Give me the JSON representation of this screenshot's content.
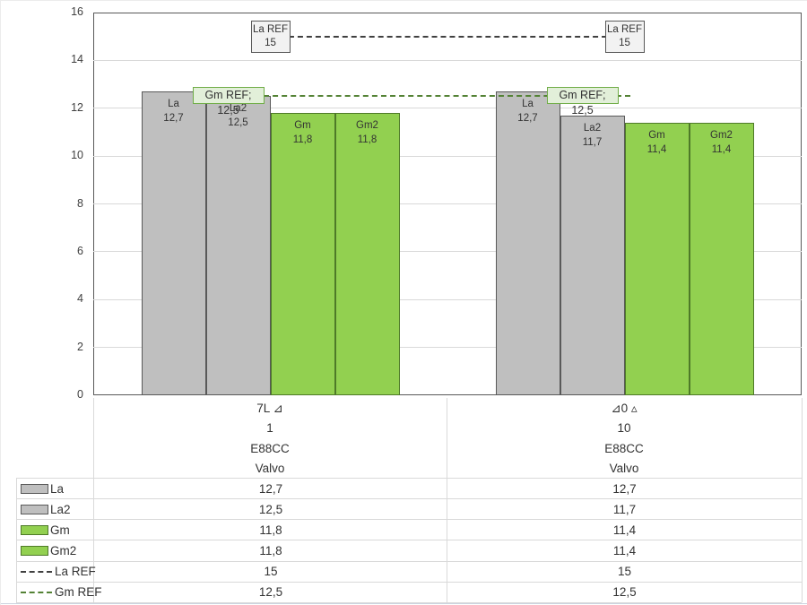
{
  "chart_data": {
    "type": "bar",
    "title": "",
    "ylim": [
      0,
      16
    ],
    "yticks": [
      0,
      2,
      4,
      6,
      8,
      10,
      12,
      14,
      16
    ],
    "grid": true,
    "decimal_separator": ",",
    "categories": [
      [
        "7L ⊿",
        "1",
        "E88CC",
        "Valvo"
      ],
      [
        "⊿0 ▵",
        "10",
        "E88CC",
        "Valvo"
      ]
    ],
    "series": [
      {
        "name": "La",
        "fill": "#bfbfbf",
        "border": "#595959",
        "values": [
          12.7,
          12.7
        ],
        "labels": [
          "12,7",
          "12,7"
        ]
      },
      {
        "name": "La2",
        "fill": "#bfbfbf",
        "border": "#595959",
        "values": [
          12.5,
          11.7
        ],
        "labels": [
          "12,5",
          "11,7"
        ]
      },
      {
        "name": "Gm",
        "fill": "#92d050",
        "border": "#4e7a28",
        "values": [
          11.8,
          11.4
        ],
        "labels": [
          "11,8",
          "11,4"
        ]
      },
      {
        "name": "Gm2",
        "fill": "#92d050",
        "border": "#4e7a28",
        "values": [
          11.8,
          11.4
        ],
        "labels": [
          "11,8",
          "11,4"
        ]
      }
    ],
    "ref_lines": [
      {
        "name": "La REF",
        "value": 15,
        "color": "#404040",
        "style": "dashed",
        "label_lines": [
          "La REF",
          "15"
        ],
        "label_bg": "#f2f2f2",
        "label_border": "#595959"
      },
      {
        "name": "Gm REF",
        "value": 12.5,
        "color": "#548235",
        "style": "dashed",
        "label": "Gm REF; 12,5",
        "label_bg": "#e2efd9",
        "label_border": "#70ad47"
      }
    ],
    "legend_position": "table-left"
  },
  "swatches": {
    "gray": {
      "fill": "#bfbfbf",
      "border": "#595959"
    },
    "green": {
      "fill": "#92d050",
      "border": "#4e7a28"
    },
    "dash-black": {
      "color": "#404040"
    },
    "dash-green": {
      "color": "#548235"
    }
  },
  "table": {
    "headers": [
      [
        "7L ⊿",
        "1",
        "E88CC",
        "Valvo"
      ],
      [
        "⊿0 ▵",
        "10",
        "E88CC",
        "Valvo"
      ]
    ],
    "rows": [
      {
        "key": "La",
        "values": [
          "12,7",
          "12,7"
        ]
      },
      {
        "key": "La2",
        "values": [
          "12,5",
          "11,7"
        ]
      },
      {
        "key": "Gm",
        "values": [
          "11,8",
          "11,4"
        ]
      },
      {
        "key": "Gm2",
        "values": [
          "11,8",
          "11,4"
        ]
      },
      {
        "key": "La REF",
        "values": [
          "15",
          "15"
        ]
      },
      {
        "key": "Gm REF",
        "values": [
          "12,5",
          "12,5"
        ]
      }
    ]
  }
}
